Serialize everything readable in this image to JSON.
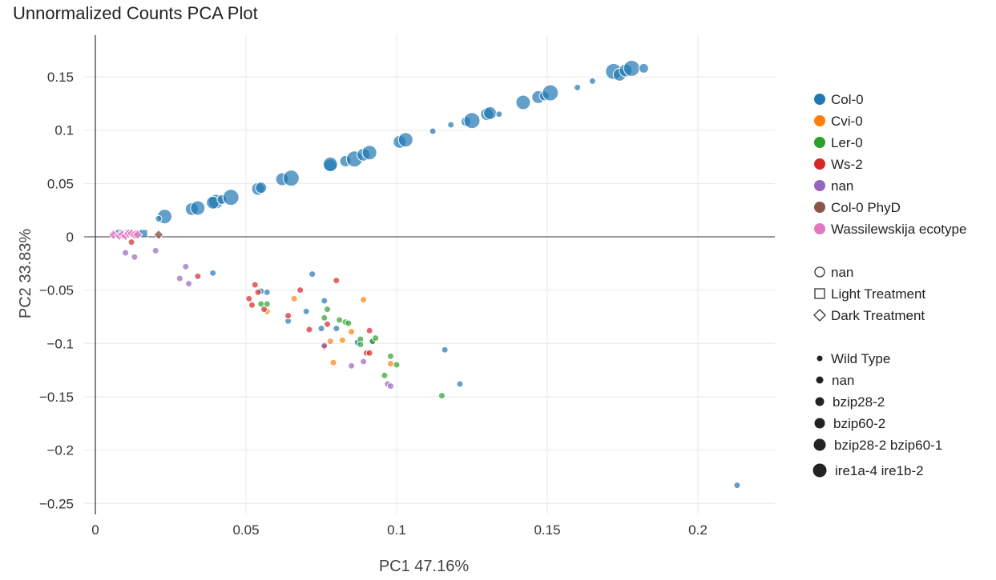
{
  "chart_data": {
    "type": "scatter",
    "title": "Unnormalized Counts PCA Plot",
    "xlabel": "PC1 47.16%",
    "ylabel": "PC2 33.83%",
    "xlim": [
      -0.003,
      0.226
    ],
    "ylim": [
      -0.261,
      0.186
    ],
    "x_ticks": [
      0,
      0.05,
      0.1,
      0.15,
      0.2
    ],
    "x_tick_labels": [
      "0",
      "0.05",
      "0.1",
      "0.15",
      "0.2"
    ],
    "y_ticks": [
      0.15,
      0.1,
      0.05,
      0,
      -0.05,
      -0.1,
      -0.15,
      -0.2,
      -0.25
    ],
    "y_tick_labels": [
      "0.15",
      "0.1",
      "0.05",
      "0",
      "−0.05",
      "−0.1",
      "−0.15",
      "−0.2",
      "−0.25"
    ],
    "grid": true,
    "legend_position": "right",
    "color_legend": [
      {
        "name": "Col-0",
        "color": "#1f77b4"
      },
      {
        "name": "Cvi-0",
        "color": "#ff7f0e"
      },
      {
        "name": "Ler-0",
        "color": "#2ca02c"
      },
      {
        "name": "Ws-2",
        "color": "#d62728"
      },
      {
        "name": "nan",
        "color": "#9467bd"
      },
      {
        "name": "Col-0 PhyD",
        "color": "#8c564b"
      },
      {
        "name": "Wassilewskija ecotype",
        "color": "#e377c2"
      }
    ],
    "shape_legend": [
      {
        "name": "nan",
        "shape": "circle"
      },
      {
        "name": "Light Treatment",
        "shape": "square"
      },
      {
        "name": "Dark Treatment",
        "shape": "diamond"
      }
    ],
    "size_legend": [
      {
        "name": "Wild Type",
        "size": 4
      },
      {
        "name": "nan",
        "size": 5
      },
      {
        "name": "bzip28-2",
        "size": 6
      },
      {
        "name": "bzip60-2",
        "size": 7
      },
      {
        "name": "bzip28-2 bzip60-1",
        "size": 8
      },
      {
        "name": "ire1a-4 ire1b-2",
        "size": 9
      }
    ],
    "points": [
      {
        "x": 0.023,
        "y": 0.019,
        "c": "#1f77b4",
        "s": 9,
        "m": "circle"
      },
      {
        "x": 0.021,
        "y": 0.017,
        "c": "#1f77b4",
        "s": 4,
        "m": "circle"
      },
      {
        "x": 0.032,
        "y": 0.026,
        "c": "#1f77b4",
        "s": 8,
        "m": "circle"
      },
      {
        "x": 0.034,
        "y": 0.027,
        "c": "#1f77b4",
        "s": 9,
        "m": "circle"
      },
      {
        "x": 0.04,
        "y": 0.033,
        "c": "#1f77b4",
        "s": 9,
        "m": "circle"
      },
      {
        "x": 0.039,
        "y": 0.032,
        "c": "#1f77b4",
        "s": 8,
        "m": "circle"
      },
      {
        "x": 0.042,
        "y": 0.035,
        "c": "#1f77b4",
        "s": 6,
        "m": "circle"
      },
      {
        "x": 0.045,
        "y": 0.037,
        "c": "#1f77b4",
        "s": 10,
        "m": "circle"
      },
      {
        "x": 0.054,
        "y": 0.045,
        "c": "#1f77b4",
        "s": 8,
        "m": "circle"
      },
      {
        "x": 0.055,
        "y": 0.046,
        "c": "#1f77b4",
        "s": 7,
        "m": "circle"
      },
      {
        "x": 0.062,
        "y": 0.054,
        "c": "#1f77b4",
        "s": 8,
        "m": "circle"
      },
      {
        "x": 0.065,
        "y": 0.055,
        "c": "#1f77b4",
        "s": 10,
        "m": "circle"
      },
      {
        "x": 0.078,
        "y": 0.067,
        "c": "#1f77b4",
        "s": 8,
        "m": "circle"
      },
      {
        "x": 0.078,
        "y": 0.068,
        "c": "#1f77b4",
        "s": 9,
        "m": "circle"
      },
      {
        "x": 0.083,
        "y": 0.071,
        "c": "#1f77b4",
        "s": 7,
        "m": "circle"
      },
      {
        "x": 0.086,
        "y": 0.073,
        "c": "#1f77b4",
        "s": 10,
        "m": "circle"
      },
      {
        "x": 0.089,
        "y": 0.077,
        "c": "#1f77b4",
        "s": 8,
        "m": "circle"
      },
      {
        "x": 0.091,
        "y": 0.079,
        "c": "#1f77b4",
        "s": 9,
        "m": "circle"
      },
      {
        "x": 0.101,
        "y": 0.089,
        "c": "#1f77b4",
        "s": 8,
        "m": "circle"
      },
      {
        "x": 0.103,
        "y": 0.091,
        "c": "#1f77b4",
        "s": 9,
        "m": "circle"
      },
      {
        "x": 0.112,
        "y": 0.099,
        "c": "#1f77b4",
        "s": 4,
        "m": "circle"
      },
      {
        "x": 0.118,
        "y": 0.105,
        "c": "#1f77b4",
        "s": 4,
        "m": "circle"
      },
      {
        "x": 0.123,
        "y": 0.108,
        "c": "#1f77b4",
        "s": 6,
        "m": "circle"
      },
      {
        "x": 0.125,
        "y": 0.109,
        "c": "#1f77b4",
        "s": 10,
        "m": "circle"
      },
      {
        "x": 0.13,
        "y": 0.115,
        "c": "#1f77b4",
        "s": 8,
        "m": "circle"
      },
      {
        "x": 0.131,
        "y": 0.116,
        "c": "#1f77b4",
        "s": 8,
        "m": "circle"
      },
      {
        "x": 0.134,
        "y": 0.115,
        "c": "#1f77b4",
        "s": 4,
        "m": "circle"
      },
      {
        "x": 0.142,
        "y": 0.126,
        "c": "#1f77b4",
        "s": 9,
        "m": "circle"
      },
      {
        "x": 0.147,
        "y": 0.131,
        "c": "#1f77b4",
        "s": 8,
        "m": "circle"
      },
      {
        "x": 0.149,
        "y": 0.132,
        "c": "#1f77b4",
        "s": 6,
        "m": "circle"
      },
      {
        "x": 0.151,
        "y": 0.135,
        "c": "#1f77b4",
        "s": 10,
        "m": "circle"
      },
      {
        "x": 0.16,
        "y": 0.14,
        "c": "#1f77b4",
        "s": 4,
        "m": "circle"
      },
      {
        "x": 0.165,
        "y": 0.146,
        "c": "#1f77b4",
        "s": 4,
        "m": "circle"
      },
      {
        "x": 0.172,
        "y": 0.155,
        "c": "#1f77b4",
        "s": 10,
        "m": "circle"
      },
      {
        "x": 0.174,
        "y": 0.152,
        "c": "#1f77b4",
        "s": 8,
        "m": "circle"
      },
      {
        "x": 0.176,
        "y": 0.156,
        "c": "#1f77b4",
        "s": 8,
        "m": "circle"
      },
      {
        "x": 0.178,
        "y": 0.158,
        "c": "#1f77b4",
        "s": 10,
        "m": "circle"
      },
      {
        "x": 0.182,
        "y": 0.158,
        "c": "#1f77b4",
        "s": 6,
        "m": "circle"
      },
      {
        "x": 0.213,
        "y": -0.233,
        "c": "#1f77b4",
        "s": 4,
        "m": "circle"
      },
      {
        "x": 0.039,
        "y": -0.034,
        "c": "#1f77b4",
        "s": 4,
        "m": "circle"
      },
      {
        "x": 0.057,
        "y": -0.052,
        "c": "#1f77b4",
        "s": 4,
        "m": "circle"
      },
      {
        "x": 0.055,
        "y": -0.051,
        "c": "#1f77b4",
        "s": 4,
        "m": "circle"
      },
      {
        "x": 0.064,
        "y": -0.079,
        "c": "#1f77b4",
        "s": 4,
        "m": "circle"
      },
      {
        "x": 0.07,
        "y": -0.07,
        "c": "#1f77b4",
        "s": 4,
        "m": "circle"
      },
      {
        "x": 0.072,
        "y": -0.035,
        "c": "#1f77b4",
        "s": 4,
        "m": "circle"
      },
      {
        "x": 0.076,
        "y": -0.06,
        "c": "#1f77b4",
        "s": 4,
        "m": "circle"
      },
      {
        "x": 0.075,
        "y": -0.086,
        "c": "#1f77b4",
        "s": 4,
        "m": "circle"
      },
      {
        "x": 0.08,
        "y": -0.086,
        "c": "#1f77b4",
        "s": 4,
        "m": "circle"
      },
      {
        "x": 0.087,
        "y": -0.099,
        "c": "#1f77b4",
        "s": 4,
        "m": "circle"
      },
      {
        "x": 0.092,
        "y": -0.098,
        "c": "#1f77b4",
        "s": 4,
        "m": "circle"
      },
      {
        "x": 0.116,
        "y": -0.106,
        "c": "#1f77b4",
        "s": 4,
        "m": "circle"
      },
      {
        "x": 0.121,
        "y": -0.138,
        "c": "#1f77b4",
        "s": 4,
        "m": "circle"
      },
      {
        "x": 0.066,
        "y": -0.058,
        "c": "#ff7f0e",
        "s": 4,
        "m": "circle"
      },
      {
        "x": 0.057,
        "y": -0.07,
        "c": "#ff7f0e",
        "s": 4,
        "m": "circle"
      },
      {
        "x": 0.076,
        "y": -0.104,
        "c": "#ff7f0e",
        "s": 4,
        "m": "circle"
      },
      {
        "x": 0.078,
        "y": -0.098,
        "c": "#ff7f0e",
        "s": 4,
        "m": "circle"
      },
      {
        "x": 0.082,
        "y": -0.097,
        "c": "#ff7f0e",
        "s": 4,
        "m": "circle"
      },
      {
        "x": 0.085,
        "y": -0.089,
        "c": "#ff7f0e",
        "s": 4,
        "m": "circle"
      },
      {
        "x": 0.079,
        "y": -0.118,
        "c": "#ff7f0e",
        "s": 4,
        "m": "circle"
      },
      {
        "x": 0.089,
        "y": -0.059,
        "c": "#ff7f0e",
        "s": 4,
        "m": "circle"
      },
      {
        "x": 0.098,
        "y": -0.119,
        "c": "#ff7f0e",
        "s": 4,
        "m": "circle"
      },
      {
        "x": 0.055,
        "y": -0.063,
        "c": "#2ca02c",
        "s": 4,
        "m": "circle"
      },
      {
        "x": 0.057,
        "y": -0.063,
        "c": "#2ca02c",
        "s": 4,
        "m": "circle"
      },
      {
        "x": 0.077,
        "y": -0.068,
        "c": "#2ca02c",
        "s": 4,
        "m": "circle"
      },
      {
        "x": 0.076,
        "y": -0.076,
        "c": "#2ca02c",
        "s": 4,
        "m": "circle"
      },
      {
        "x": 0.081,
        "y": -0.078,
        "c": "#2ca02c",
        "s": 4,
        "m": "circle"
      },
      {
        "x": 0.083,
        "y": -0.08,
        "c": "#2ca02c",
        "s": 4,
        "m": "circle"
      },
      {
        "x": 0.084,
        "y": -0.081,
        "c": "#2ca02c",
        "s": 4,
        "m": "circle"
      },
      {
        "x": 0.088,
        "y": -0.096,
        "c": "#2ca02c",
        "s": 4,
        "m": "circle"
      },
      {
        "x": 0.088,
        "y": -0.101,
        "c": "#2ca02c",
        "s": 4,
        "m": "circle"
      },
      {
        "x": 0.092,
        "y": -0.098,
        "c": "#2ca02c",
        "s": 4,
        "m": "circle"
      },
      {
        "x": 0.093,
        "y": -0.095,
        "c": "#2ca02c",
        "s": 4,
        "m": "circle"
      },
      {
        "x": 0.098,
        "y": -0.112,
        "c": "#2ca02c",
        "s": 4,
        "m": "circle"
      },
      {
        "x": 0.1,
        "y": -0.12,
        "c": "#2ca02c",
        "s": 4,
        "m": "circle"
      },
      {
        "x": 0.096,
        "y": -0.13,
        "c": "#2ca02c",
        "s": 4,
        "m": "circle"
      },
      {
        "x": 0.115,
        "y": -0.149,
        "c": "#2ca02c",
        "s": 4,
        "m": "circle"
      },
      {
        "x": 0.012,
        "y": -0.005,
        "c": "#d62728",
        "s": 4,
        "m": "circle"
      },
      {
        "x": 0.034,
        "y": -0.037,
        "c": "#d62728",
        "s": 4,
        "m": "circle"
      },
      {
        "x": 0.051,
        "y": -0.058,
        "c": "#d62728",
        "s": 4,
        "m": "circle"
      },
      {
        "x": 0.053,
        "y": -0.045,
        "c": "#d62728",
        "s": 4,
        "m": "circle"
      },
      {
        "x": 0.052,
        "y": -0.064,
        "c": "#d62728",
        "s": 4,
        "m": "circle"
      },
      {
        "x": 0.054,
        "y": -0.052,
        "c": "#d62728",
        "s": 4,
        "m": "circle"
      },
      {
        "x": 0.056,
        "y": -0.068,
        "c": "#d62728",
        "s": 4,
        "m": "circle"
      },
      {
        "x": 0.064,
        "y": -0.074,
        "c": "#d62728",
        "s": 4,
        "m": "circle"
      },
      {
        "x": 0.068,
        "y": -0.05,
        "c": "#d62728",
        "s": 4,
        "m": "circle"
      },
      {
        "x": 0.071,
        "y": -0.087,
        "c": "#d62728",
        "s": 4,
        "m": "circle"
      },
      {
        "x": 0.077,
        "y": -0.082,
        "c": "#d62728",
        "s": 4,
        "m": "circle"
      },
      {
        "x": 0.08,
        "y": -0.041,
        "c": "#d62728",
        "s": 4,
        "m": "circle"
      },
      {
        "x": 0.076,
        "y": -0.103,
        "c": "#d62728",
        "s": 4,
        "m": "circle"
      },
      {
        "x": 0.091,
        "y": -0.088,
        "c": "#d62728",
        "s": 4,
        "m": "circle"
      },
      {
        "x": 0.09,
        "y": -0.109,
        "c": "#d62728",
        "s": 4,
        "m": "circle"
      },
      {
        "x": 0.091,
        "y": -0.109,
        "c": "#d62728",
        "s": 4,
        "m": "circle"
      },
      {
        "x": 0.01,
        "y": -0.015,
        "c": "#9467bd",
        "s": 4,
        "m": "circle"
      },
      {
        "x": 0.013,
        "y": -0.019,
        "c": "#9467bd",
        "s": 4,
        "m": "circle"
      },
      {
        "x": 0.02,
        "y": -0.013,
        "c": "#9467bd",
        "s": 4,
        "m": "circle"
      },
      {
        "x": 0.028,
        "y": -0.039,
        "c": "#9467bd",
        "s": 4,
        "m": "circle"
      },
      {
        "x": 0.03,
        "y": -0.028,
        "c": "#9467bd",
        "s": 4,
        "m": "circle"
      },
      {
        "x": 0.031,
        "y": -0.044,
        "c": "#9467bd",
        "s": 4,
        "m": "circle"
      },
      {
        "x": 0.076,
        "y": -0.102,
        "c": "#9467bd",
        "s": 4,
        "m": "circle"
      },
      {
        "x": 0.085,
        "y": -0.121,
        "c": "#9467bd",
        "s": 4,
        "m": "circle"
      },
      {
        "x": 0.089,
        "y": -0.117,
        "c": "#9467bd",
        "s": 4,
        "m": "circle"
      },
      {
        "x": 0.097,
        "y": -0.138,
        "c": "#9467bd",
        "s": 4,
        "m": "circle"
      },
      {
        "x": 0.098,
        "y": -0.14,
        "c": "#9467bd",
        "s": 4,
        "m": "circle"
      },
      {
        "x": 0.008,
        "y": 0.003,
        "c": "#1f77b4",
        "s": 5,
        "m": "square"
      },
      {
        "x": 0.011,
        "y": 0.003,
        "c": "#1f77b4",
        "s": 5,
        "m": "square"
      },
      {
        "x": 0.014,
        "y": 0.003,
        "c": "#1f77b4",
        "s": 5,
        "m": "square"
      },
      {
        "x": 0.016,
        "y": 0.003,
        "c": "#1f77b4",
        "s": 5,
        "m": "square"
      },
      {
        "x": 0.021,
        "y": 0.002,
        "c": "#8c564b",
        "s": 6,
        "m": "diamond"
      },
      {
        "x": 0.006,
        "y": 0.002,
        "c": "#e377c2",
        "s": 6,
        "m": "diamond"
      },
      {
        "x": 0.008,
        "y": 0.001,
        "c": "#e377c2",
        "s": 6,
        "m": "diamond"
      },
      {
        "x": 0.009,
        "y": 0.002,
        "c": "#e377c2",
        "s": 6,
        "m": "diamond"
      },
      {
        "x": 0.01,
        "y": 0.001,
        "c": "#e377c2",
        "s": 6,
        "m": "diamond"
      },
      {
        "x": 0.011,
        "y": 0.003,
        "c": "#e377c2",
        "s": 6,
        "m": "diamond"
      },
      {
        "x": 0.012,
        "y": 0.003,
        "c": "#e377c2",
        "s": 6,
        "m": "diamond"
      },
      {
        "x": 0.013,
        "y": 0.002,
        "c": "#e377c2",
        "s": 6,
        "m": "diamond"
      },
      {
        "x": 0.014,
        "y": 0.002,
        "c": "#e377c2",
        "s": 6,
        "m": "diamond"
      }
    ]
  }
}
